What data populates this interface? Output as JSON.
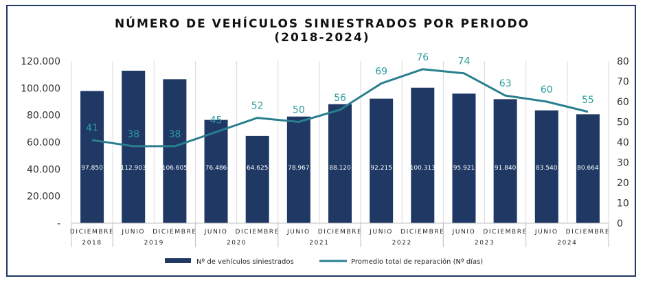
{
  "colors": {
    "bar": "#1f3864",
    "line": "#2a7f8f",
    "line_label": "#2a9d9d",
    "frame": "#1f3864"
  },
  "chart_data": {
    "type": "bar",
    "title": "NÚMERO DE VEHÍCULOS SINIESTRADOS POR PERIODO",
    "subtitle": "(2018-2024)",
    "categories": [
      "DICIEMBRE",
      "JUNIO",
      "DICIEMBRE",
      "JUNIO",
      "DICIEMBRE",
      "JUNIO",
      "DICIEMBRE",
      "JUNIO",
      "DICIEMBRE",
      "JUNIO",
      "DICIEMBRE",
      "JUNIO",
      "DICIEMBRE"
    ],
    "year_groups": [
      {
        "label": "2018",
        "span": 1
      },
      {
        "label": "2019",
        "span": 2
      },
      {
        "label": "2020",
        "span": 2
      },
      {
        "label": "2021",
        "span": 2
      },
      {
        "label": "2022",
        "span": 2
      },
      {
        "label": "2023",
        "span": 2
      },
      {
        "label": "2024",
        "span": 2
      }
    ],
    "series": [
      {
        "name": "Nº de vehículos siniestrados",
        "type": "bar",
        "axis": "left",
        "values": [
          97850,
          112903,
          106605,
          76486,
          64625,
          78967,
          88120,
          92215,
          100313,
          95921,
          91840,
          83540,
          80664
        ],
        "labels": [
          "97.850",
          "112.903",
          "106.605",
          "76.486",
          "64.625",
          "78.967",
          "88.120",
          "92.215",
          "100.313",
          "95.921",
          "91.840",
          "83.540",
          "80.664"
        ]
      },
      {
        "name": "Promedio total de reparación (Nº días)",
        "type": "line",
        "axis": "right",
        "values": [
          41,
          38,
          38,
          45,
          52,
          50,
          56,
          69,
          76,
          74,
          63,
          60,
          55
        ]
      }
    ],
    "y_left": {
      "ylim": [
        0,
        120000
      ],
      "ticks": [
        "120.000",
        "100.000",
        "80.000",
        "60.000",
        "40.000",
        "20.000",
        "-"
      ]
    },
    "y_right": {
      "ylim": [
        0,
        80
      ],
      "ticks": [
        "80",
        "70",
        "60",
        "50",
        "40",
        "30",
        "20",
        "10",
        "0"
      ]
    },
    "legend_position": "bottom"
  }
}
